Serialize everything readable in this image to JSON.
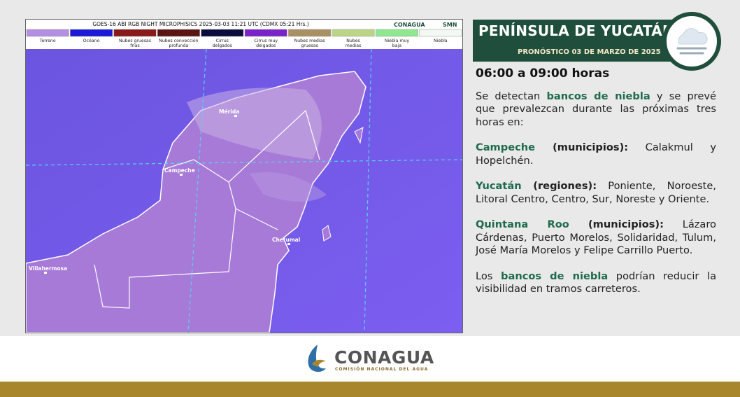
{
  "map": {
    "title": "GOES-16 ABI RGB NIGHT MICROPHISICS 2025-03-03 11:21 UTC (CDMX  05:21 Hrs.)",
    "logos": [
      "CONAGUA",
      "SMN"
    ],
    "legend": [
      {
        "label": "Terreno",
        "color": "#b48ee0"
      },
      {
        "label": "Océano",
        "color": "#1c1ad6"
      },
      {
        "label": "Nubes gruesas frías",
        "color": "#8a1a1a"
      },
      {
        "label": "Nubes convección profunda",
        "color": "#5a1412"
      },
      {
        "label": "Cirrus delgados",
        "color": "#0b0b3e"
      },
      {
        "label": "Cirrus muy delgados",
        "color": "#7a22c8"
      },
      {
        "label": "Nubes medias gruesas",
        "color": "#a89062"
      },
      {
        "label": "Nubes medias",
        "color": "#bcd487"
      },
      {
        "label": "Niebla muy baja",
        "color": "#8fe88f"
      },
      {
        "label": "Niebla",
        "color": "#f2f8f2"
      }
    ],
    "places": [
      "Mérida",
      "Campeche",
      "Chetumal",
      "Villahermosa"
    ]
  },
  "header": {
    "title": "PENÍNSULA DE YUCATÁN",
    "subtitle": "PRONÓSTICO 03 DE MARZO DE 2025"
  },
  "forecast": {
    "period": "06:00 a 09:00 horas",
    "intro": [
      "Se detectan ",
      "bancos de  niebla",
      " y se prevé que prevalezcan durante las próximas tres horas en:"
    ],
    "areas": [
      {
        "state": "Campeche",
        "unit": " (municipios):",
        "places": " Calakmul y Hopelchén."
      },
      {
        "state": "Yucatán",
        "unit": " (regiones):",
        "places": " Poniente, Noroeste, Litoral Centro, Centro, Sur, Noreste y Oriente."
      },
      {
        "state": "Quintana Roo",
        "unit": " (municipios):",
        "places": " Lázaro Cárdenas, Puerto Morelos, Solidaridad, Tulum, José María Morelos y Felipe Carrillo Puerto."
      }
    ],
    "closing": [
      "Los ",
      "bancos de niebla",
      " podrían reducir la visibilidad en tramos carreteros."
    ]
  },
  "footer": {
    "logo": "CONAGUA",
    "tagline": "COMISIÓN NACIONAL DEL AGUA"
  }
}
